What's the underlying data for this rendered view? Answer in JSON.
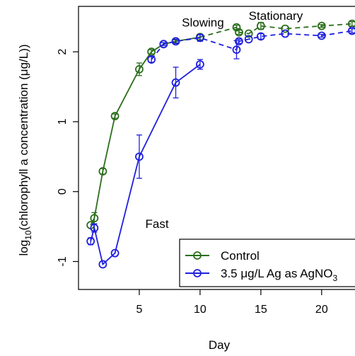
{
  "chart_data": {
    "type": "line",
    "xlabel": "Day",
    "ylabel": {
      "prefix": "log",
      "subscript": "10",
      "suffix": "(chlorophyll a concentration (μg/L))"
    },
    "xlim": [
      0,
      23.5
    ],
    "ylim": [
      -1.4,
      2.65
    ],
    "x_ticks": [
      5,
      10,
      15,
      20
    ],
    "y_ticks": [
      -1,
      0,
      1,
      2
    ],
    "grid": false,
    "legend_position": "bottom-right",
    "annotations": [
      {
        "text": "Fast",
        "x": 5.5,
        "y": -0.52
      },
      {
        "text": "Slowing",
        "x": 8.5,
        "y": 2.36
      },
      {
        "text": "Stationary",
        "x": 14.0,
        "y": 2.46
      }
    ],
    "series": [
      {
        "name": "Control",
        "color": "#2a6e1b",
        "solid": {
          "x": [
            1,
            1.3,
            2,
            3,
            5,
            6,
            7,
            8,
            10
          ],
          "y": [
            -0.48,
            -0.38,
            0.29,
            1.08,
            1.75,
            2.0,
            2.11,
            2.15,
            2.21
          ],
          "err": [
            0.0,
            0.08,
            0.04,
            0.03,
            0.09,
            0.03,
            0.02,
            0.02,
            0.04
          ]
        },
        "dashed": {
          "x": [
            10,
            13,
            13.2,
            14,
            15,
            17,
            20,
            22.5
          ],
          "y": [
            2.21,
            2.35,
            2.28,
            2.26,
            2.37,
            2.33,
            2.37,
            2.4
          ],
          "err": [
            0.04,
            0.03,
            0.03,
            0.0,
            0.05,
            0.0,
            0.02,
            0.03
          ]
        }
      },
      {
        "name_prefix": "3.5 μg/L Ag as AgNO",
        "name_subscript": "3",
        "color": "#1f1fe0",
        "solid": {
          "x": [
            1,
            1.3,
            2,
            3,
            5,
            8,
            10
          ],
          "y": [
            -0.71,
            -0.52,
            -1.04,
            -0.88,
            0.5,
            1.56,
            1.82
          ],
          "err": [
            0.05,
            0.06,
            0.0,
            0.0,
            0.31,
            0.22,
            0.07
          ]
        },
        "dashed": {
          "x": [
            6,
            7,
            8,
            10,
            13,
            13.2,
            14,
            15,
            17,
            20,
            22.5
          ],
          "y": [
            1.89,
            2.11,
            2.15,
            2.2,
            2.03,
            2.15,
            2.18,
            2.22,
            2.26,
            2.23,
            2.3
          ],
          "err": [
            0.04,
            0.02,
            0.03,
            0.05,
            0.13,
            0.03,
            0.0,
            0.04,
            0.0,
            0.02,
            0.03
          ]
        }
      }
    ]
  }
}
